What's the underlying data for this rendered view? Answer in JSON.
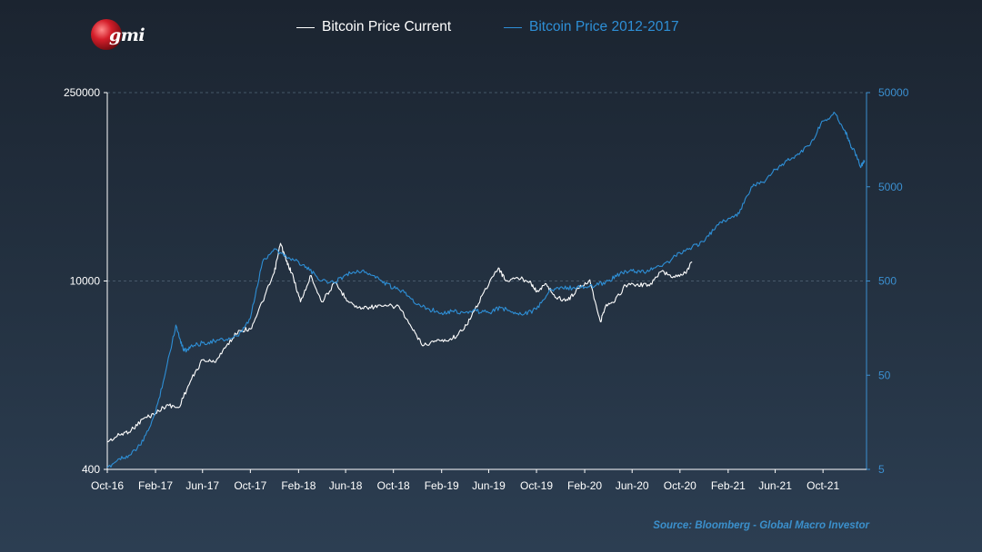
{
  "brand": {
    "logo_text": "gmi"
  },
  "source_note": "Source: Bloomberg - Global Macro Investor",
  "colors": {
    "series_current": "#ffffff",
    "series_2012_2017": "#2e8fd6",
    "right_axis": "#3b8fd0",
    "background": "#1f2b38"
  },
  "chart_data": {
    "type": "line",
    "title": "",
    "legend": {
      "placement": "top-center"
    },
    "grid": {
      "horizontal_dashed": true
    },
    "x_axis": {
      "label": "",
      "ticks": [
        "Oct-16",
        "Feb-17",
        "Jun-17",
        "Oct-17",
        "Feb-18",
        "Jun-18",
        "Oct-18",
        "Feb-19",
        "Jun-19",
        "Oct-19",
        "Feb-20",
        "Jun-20",
        "Oct-20",
        "Feb-21",
        "Jun-21",
        "Oct-21"
      ]
    },
    "y_left": {
      "label": "",
      "scale": "log",
      "range": [
        400,
        250000
      ],
      "ticks": [
        "400",
        "10000",
        "250000"
      ],
      "tick_values": [
        400,
        10000,
        250000
      ]
    },
    "y_right": {
      "label": "",
      "scale": "log",
      "range": [
        5,
        50000
      ],
      "ticks": [
        "5",
        "50",
        "500",
        "5000",
        "50000"
      ],
      "tick_values": [
        5,
        50,
        500,
        5000,
        50000
      ]
    },
    "series": [
      {
        "name": "Bitcoin Price Current",
        "axis": "left",
        "color": "#ffffff",
        "points": [
          [
            "2016-10-01",
            640
          ],
          [
            "2016-11-01",
            720
          ],
          [
            "2016-12-01",
            780
          ],
          [
            "2017-01-01",
            950
          ],
          [
            "2017-02-01",
            1040
          ],
          [
            "2017-03-01",
            1200
          ],
          [
            "2017-04-01",
            1150
          ],
          [
            "2017-05-01",
            1800
          ],
          [
            "2017-06-01",
            2600
          ],
          [
            "2017-07-01",
            2500
          ],
          [
            "2017-08-01",
            3300
          ],
          [
            "2017-09-01",
            4300
          ],
          [
            "2017-10-01",
            4400
          ],
          [
            "2017-11-01",
            7000
          ],
          [
            "2017-12-01",
            11500
          ],
          [
            "2017-12-17",
            19000
          ],
          [
            "2018-01-01",
            14000
          ],
          [
            "2018-01-15",
            11500
          ],
          [
            "2018-02-06",
            7000
          ],
          [
            "2018-03-05",
            11000
          ],
          [
            "2018-04-01",
            7000
          ],
          [
            "2018-05-05",
            9700
          ],
          [
            "2018-06-01",
            7500
          ],
          [
            "2018-07-01",
            6300
          ],
          [
            "2018-08-01",
            6400
          ],
          [
            "2018-09-01",
            6500
          ],
          [
            "2018-10-15",
            6500
          ],
          [
            "2018-11-20",
            4300
          ],
          [
            "2018-12-15",
            3300
          ],
          [
            "2019-01-15",
            3600
          ],
          [
            "2019-02-15",
            3600
          ],
          [
            "2019-03-15",
            4000
          ],
          [
            "2019-04-15",
            5200
          ],
          [
            "2019-05-15",
            7800
          ],
          [
            "2019-06-26",
            12500
          ],
          [
            "2019-07-15",
            10000
          ],
          [
            "2019-08-15",
            10500
          ],
          [
            "2019-09-15",
            10000
          ],
          [
            "2019-10-01",
            8300
          ],
          [
            "2019-10-26",
            9500
          ],
          [
            "2019-11-20",
            7500
          ],
          [
            "2019-12-20",
            7200
          ],
          [
            "2020-01-15",
            8800
          ],
          [
            "2020-02-14",
            10200
          ],
          [
            "2020-03-12",
            5000
          ],
          [
            "2020-03-25",
            6500
          ],
          [
            "2020-04-15",
            6900
          ],
          [
            "2020-05-15",
            9300
          ],
          [
            "2020-06-15",
            9500
          ],
          [
            "2020-07-15",
            9200
          ],
          [
            "2020-08-15",
            11800
          ],
          [
            "2020-09-15",
            10800
          ],
          [
            "2020-10-15",
            11500
          ],
          [
            "2020-11-01",
            13800
          ]
        ]
      },
      {
        "name": "Bitcoin Price 2012-2017",
        "axis": "right",
        "color": "#2e8fd6",
        "points": [
          [
            "2016-10-01",
            5.2
          ],
          [
            "2016-11-01",
            6.5
          ],
          [
            "2016-12-01",
            7.2
          ],
          [
            "2017-01-01",
            10
          ],
          [
            "2017-02-01",
            20
          ],
          [
            "2017-03-01",
            60
          ],
          [
            "2017-03-25",
            170
          ],
          [
            "2017-04-05",
            120
          ],
          [
            "2017-04-15",
            90
          ],
          [
            "2017-05-01",
            100
          ],
          [
            "2017-06-01",
            110
          ],
          [
            "2017-07-01",
            115
          ],
          [
            "2017-08-01",
            120
          ],
          [
            "2017-09-01",
            130
          ],
          [
            "2017-10-01",
            200
          ],
          [
            "2017-11-01",
            800
          ],
          [
            "2017-12-01",
            1100
          ],
          [
            "2018-01-01",
            900
          ],
          [
            "2018-02-01",
            800
          ],
          [
            "2018-03-01",
            650
          ],
          [
            "2018-04-01",
            500
          ],
          [
            "2018-05-01",
            480
          ],
          [
            "2018-06-01",
            580
          ],
          [
            "2018-07-01",
            650
          ],
          [
            "2018-08-01",
            600
          ],
          [
            "2018-09-01",
            500
          ],
          [
            "2018-10-01",
            420
          ],
          [
            "2018-11-01",
            380
          ],
          [
            "2018-12-01",
            280
          ],
          [
            "2019-01-01",
            250
          ],
          [
            "2019-02-01",
            230
          ],
          [
            "2019-03-01",
            240
          ],
          [
            "2019-04-01",
            230
          ],
          [
            "2019-05-01",
            240
          ],
          [
            "2019-06-01",
            230
          ],
          [
            "2019-07-01",
            260
          ],
          [
            "2019-08-01",
            235
          ],
          [
            "2019-09-01",
            225
          ],
          [
            "2019-10-01",
            250
          ],
          [
            "2019-11-01",
            380
          ],
          [
            "2019-12-01",
            430
          ],
          [
            "2020-01-01",
            420
          ],
          [
            "2020-02-01",
            430
          ],
          [
            "2020-03-01",
            450
          ],
          [
            "2020-04-01",
            500
          ],
          [
            "2020-05-01",
            600
          ],
          [
            "2020-06-01",
            640
          ],
          [
            "2020-07-01",
            620
          ],
          [
            "2020-08-01",
            700
          ],
          [
            "2020-09-01",
            800
          ],
          [
            "2020-10-01",
            1000
          ],
          [
            "2020-11-01",
            1150
          ],
          [
            "2020-12-01",
            1300
          ],
          [
            "2021-01-01",
            1900
          ],
          [
            "2021-02-01",
            2300
          ],
          [
            "2021-03-01",
            2600
          ],
          [
            "2021-04-01",
            5000
          ],
          [
            "2021-05-01",
            5600
          ],
          [
            "2021-06-01",
            7600
          ],
          [
            "2021-07-01",
            9500
          ],
          [
            "2021-08-01",
            11000
          ],
          [
            "2021-09-01",
            15000
          ],
          [
            "2021-10-01",
            25000
          ],
          [
            "2021-11-01",
            30000
          ],
          [
            "2021-11-25",
            20000
          ],
          [
            "2021-12-10",
            14000
          ],
          [
            "2021-12-25",
            11000
          ],
          [
            "2022-01-05",
            8000
          ],
          [
            "2022-01-15",
            9500
          ]
        ]
      }
    ]
  }
}
